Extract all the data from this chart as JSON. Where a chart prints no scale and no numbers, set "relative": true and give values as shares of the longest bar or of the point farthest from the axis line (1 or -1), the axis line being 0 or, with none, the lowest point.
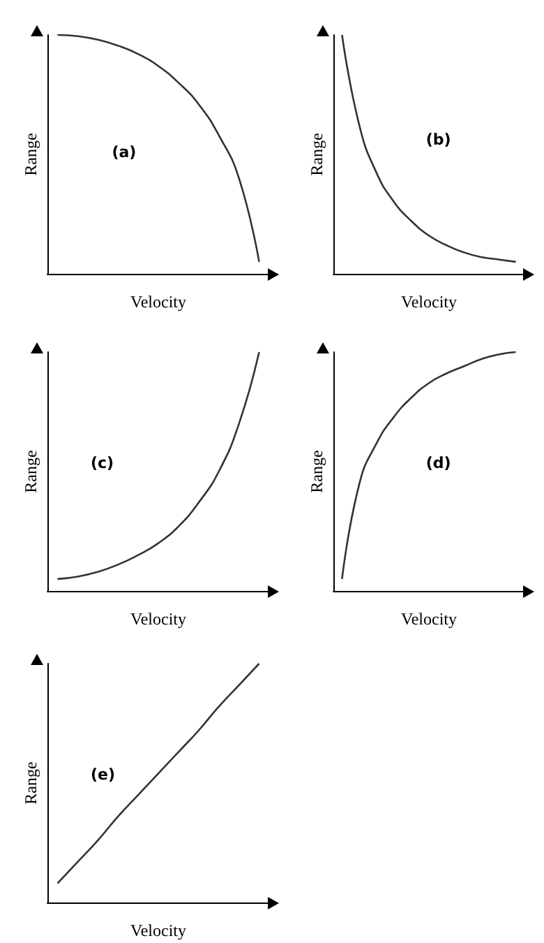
{
  "chart_data": [
    {
      "type": "line",
      "relative": true,
      "xlabel": "Velocity",
      "ylabel": "Range",
      "annotations": [
        "(a)"
      ],
      "marker": "none",
      "categories": [
        null,
        null,
        null,
        null,
        null,
        null,
        null,
        null,
        null,
        null,
        null
      ],
      "series": [
        {
          "color": "#333333",
          "values": [
            1,
            0.995,
            0.98,
            0.955,
            0.92,
            0.87,
            0.8,
            0.71,
            0.58,
            0.4,
            0.05
          ]
        }
      ]
    },
    {
      "type": "line",
      "relative": true,
      "xlabel": "Velocity",
      "ylabel": "Range",
      "annotations": [
        "(b)"
      ],
      "marker": "none",
      "categories": [
        null,
        null,
        null,
        null,
        null,
        null,
        null,
        null,
        null,
        null,
        null
      ],
      "series": [
        {
          "color": "#333333",
          "values": [
            1,
            0.62,
            0.42,
            0.3,
            0.22,
            0.16,
            0.12,
            0.09,
            0.07,
            0.06,
            0.05
          ]
        }
      ]
    },
    {
      "type": "line",
      "relative": true,
      "xlabel": "Velocity",
      "ylabel": "Range",
      "annotations": [
        "(c)"
      ],
      "marker": "none",
      "categories": [
        null,
        null,
        null,
        null,
        null,
        null,
        null,
        null,
        null,
        null,
        null
      ],
      "series": [
        {
          "color": "#333333",
          "values": [
            0.05,
            0.06,
            0.08,
            0.11,
            0.15,
            0.2,
            0.27,
            0.37,
            0.5,
            0.7,
            1
          ]
        }
      ]
    },
    {
      "type": "line",
      "relative": true,
      "xlabel": "Velocity",
      "ylabel": "Range",
      "annotations": [
        "(d)"
      ],
      "marker": "none",
      "categories": [
        null,
        null,
        null,
        null,
        null,
        null,
        null,
        null,
        null,
        null,
        null
      ],
      "series": [
        {
          "color": "#333333",
          "values": [
            0.05,
            0.45,
            0.62,
            0.73,
            0.81,
            0.87,
            0.91,
            0.94,
            0.97,
            0.99,
            1
          ]
        }
      ]
    },
    {
      "type": "line",
      "relative": true,
      "xlabel": "Velocity",
      "ylabel": "Range",
      "annotations": [
        "(e)"
      ],
      "marker": "none",
      "categories": [
        null,
        null,
        null,
        null,
        null,
        null,
        null,
        null,
        null,
        null,
        null
      ],
      "series": [
        {
          "color": "#333333",
          "values": [
            0.08,
            0.17,
            0.26,
            0.36,
            0.45,
            0.54,
            0.63,
            0.72,
            0.82,
            0.91,
            1
          ]
        }
      ]
    }
  ]
}
